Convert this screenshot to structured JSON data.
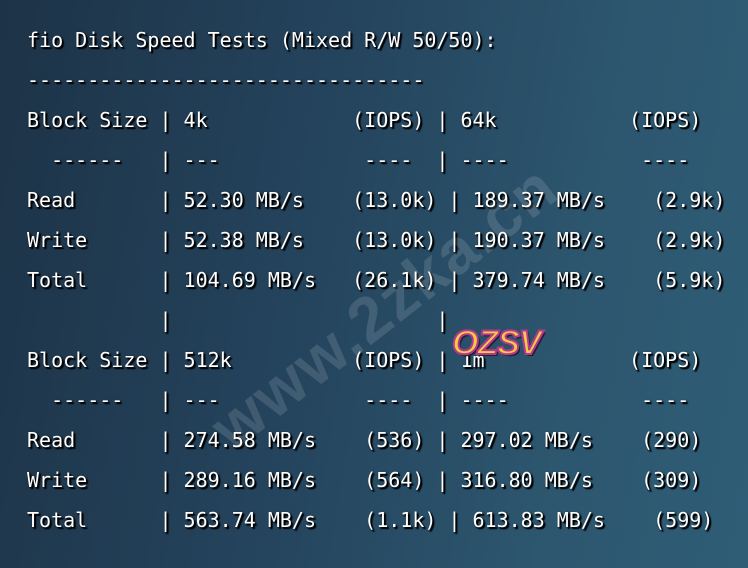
{
  "terminal": {
    "lines": [
      "fio Disk Speed Tests (Mixed R/W 50/50):",
      "---------------------------------",
      "Block Size | 4k            (IOPS) | 64k           (IOPS)",
      "  ------   | ---            ----  | ----           ---- ",
      "Read       | 52.30 MB/s    (13.0k) | 189.37 MB/s    (2.9k)",
      "Write      | 52.38 MB/s    (13.0k) | 190.37 MB/s    (2.9k)",
      "Total      | 104.69 MB/s   (26.1k) | 379.74 MB/s    (5.9k)",
      "           |                      |",
      "Block Size | 512k          (IOPS) | 1m            (IOPS)",
      "  ------   | ---            ----  | ----           ---- ",
      "Read       | 274.58 MB/s    (536) | 297.02 MB/s    (290)",
      "Write      | 289.16 MB/s    (564) | 316.80 MB/s    (309)",
      "Total      | 563.74 MB/s    (1.1k) | 613.83 MB/s    (599)"
    ]
  },
  "watermark": {
    "text": "www.2zka.cn",
    "logo": "OZSV"
  },
  "colors": {
    "text": "#ffffff",
    "background": "#24435c"
  }
}
